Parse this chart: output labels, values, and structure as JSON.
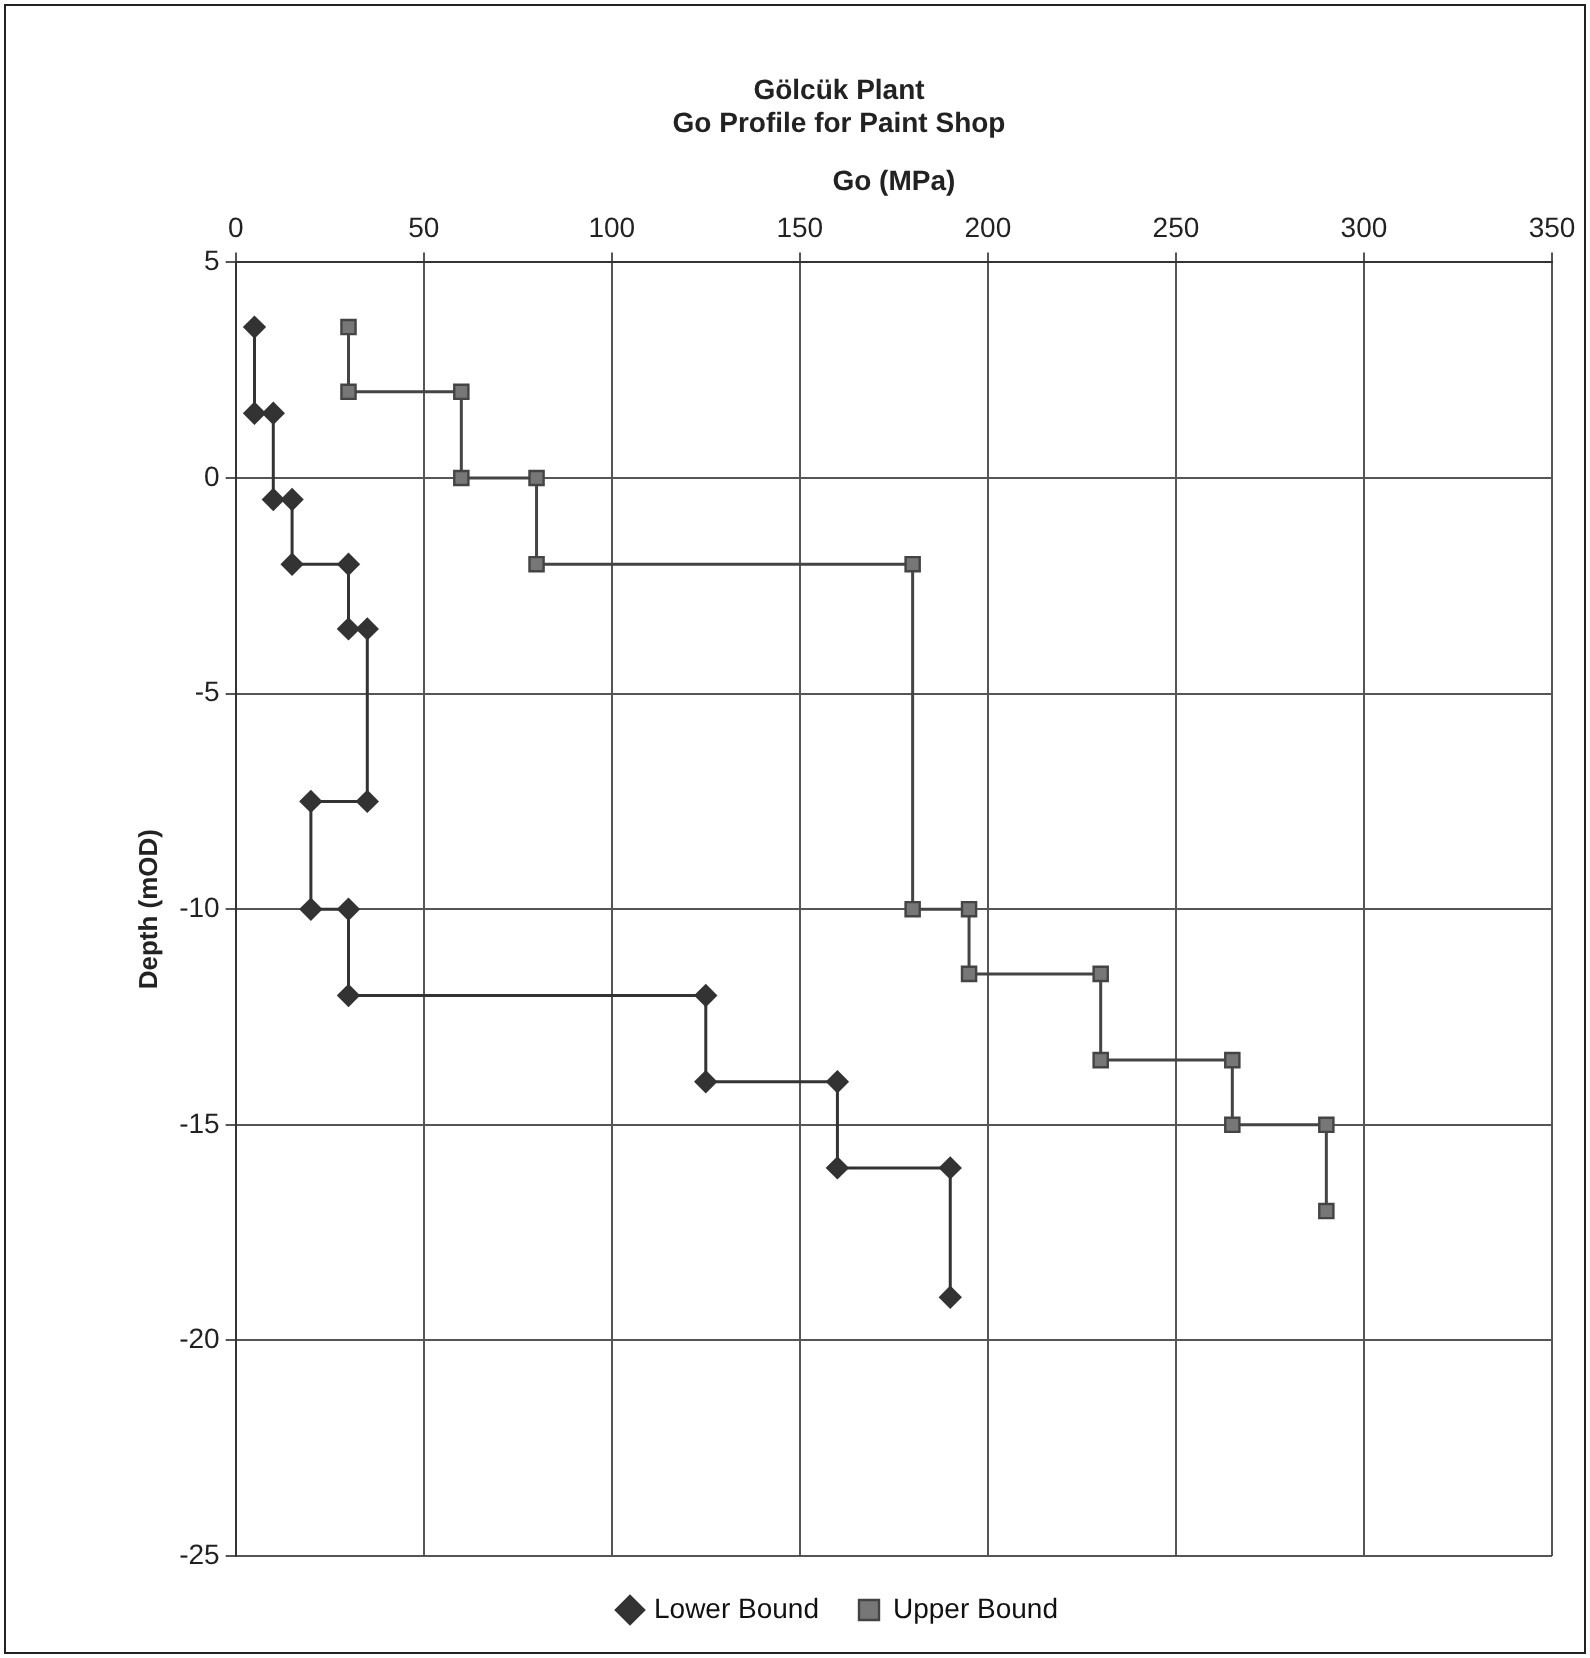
{
  "chart_data": {
    "type": "line",
    "title": "Gölcük Plant",
    "subtitle": "Go Profile for Paint Shop",
    "xlabel": "Go (MPa)",
    "ylabel": "Depth (mOD)",
    "xlim": [
      0,
      350
    ],
    "xticks": [
      0,
      50,
      100,
      150,
      200,
      250,
      300,
      350
    ],
    "ylim": [
      -25,
      5
    ],
    "yticks": [
      -25,
      -20,
      -15,
      -10,
      -5,
      0,
      5
    ],
    "grid": true,
    "legend": "bottom",
    "line_style": "solid",
    "series": [
      {
        "name": "Lower Bound",
        "color": "#333333",
        "marker": "diamond",
        "x": [
          5,
          5,
          10,
          10,
          15,
          15,
          30,
          30,
          35,
          35,
          20,
          20,
          30,
          30,
          125,
          125,
          160,
          160,
          190,
          190
        ],
        "values": [
          3.5,
          1.5,
          1.5,
          -0.5,
          -0.5,
          -2,
          -2,
          -3.5,
          -3.5,
          -7.5,
          -7.5,
          -10,
          -10,
          -12,
          -12,
          -14,
          -14,
          -16,
          -16,
          -19
        ]
      },
      {
        "name": "Upper Bound",
        "color": "#444444",
        "marker": "square",
        "x": [
          30,
          30,
          60,
          60,
          80,
          80,
          180,
          180,
          195,
          195,
          230,
          230,
          265,
          265,
          290,
          290
        ],
        "values": [
          3.5,
          2,
          2,
          0,
          0,
          -2,
          -2,
          -10,
          -10,
          -11.5,
          -11.5,
          -13.5,
          -13.5,
          -15,
          -15,
          -17
        ]
      }
    ]
  }
}
